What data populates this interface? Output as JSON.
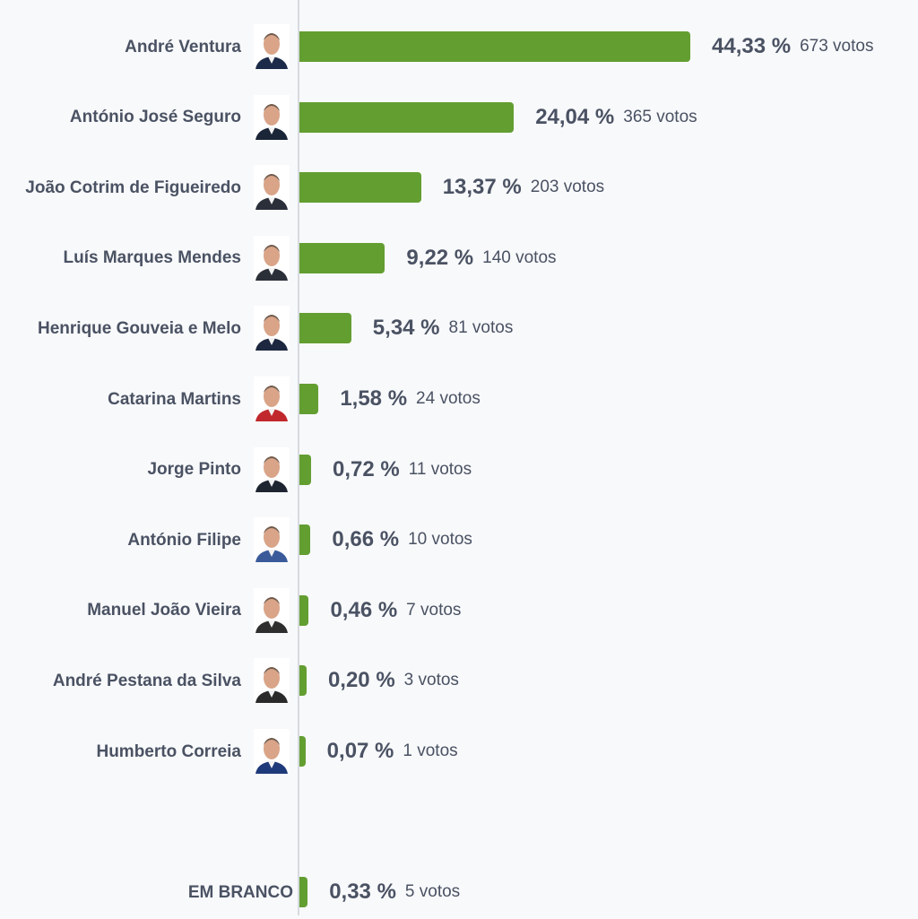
{
  "chart_data": {
    "type": "bar",
    "orientation": "horizontal",
    "bar_color": "#639e31",
    "categories": [
      "André Ventura",
      "António José Seguro",
      "João Cotrim de Figueiredo",
      "Luís Marques Mendes",
      "Henrique Gouveia e Melo",
      "Catarina Martins",
      "Jorge Pinto",
      "António Filipe",
      "Manuel João Vieira",
      "André Pestana da Silva",
      "Humberto Correia",
      "EM BRANCO"
    ],
    "values": [
      44.33,
      24.04,
      13.37,
      9.22,
      5.34,
      1.58,
      0.72,
      0.66,
      0.46,
      0.2,
      0.07,
      0.33
    ],
    "rows": [
      {
        "name": "André Ventura",
        "pct_label": "44,33 %",
        "votes_label": "673 votos",
        "photo": true
      },
      {
        "name": "António José Seguro",
        "pct_label": "24,04 %",
        "votes_label": "365 votos",
        "photo": true
      },
      {
        "name": "João Cotrim de Figueiredo",
        "pct_label": "13,37 %",
        "votes_label": "203 votos",
        "photo": true
      },
      {
        "name": "Luís Marques Mendes",
        "pct_label": "9,22 %",
        "votes_label": "140 votos",
        "photo": true
      },
      {
        "name": "Henrique Gouveia e Melo",
        "pct_label": "5,34 %",
        "votes_label": "81 votos",
        "photo": true
      },
      {
        "name": "Catarina Martins",
        "pct_label": "1,58 %",
        "votes_label": "24 votos",
        "photo": true
      },
      {
        "name": "Jorge Pinto",
        "pct_label": "0,72 %",
        "votes_label": "11 votos",
        "photo": true
      },
      {
        "name": "António Filipe",
        "pct_label": "0,66 %",
        "votes_label": "10 votos",
        "photo": true
      },
      {
        "name": "Manuel João Vieira",
        "pct_label": "0,46 %",
        "votes_label": "7 votos",
        "photo": true
      },
      {
        "name": "André Pestana da Silva",
        "pct_label": "0,20 %",
        "votes_label": "3 votos",
        "photo": true
      },
      {
        "name": "Humberto Correia",
        "pct_label": "0,07 %",
        "votes_label": "1 votos",
        "photo": true
      },
      {
        "name": "EM BRANCO",
        "pct_label": "0,33 %",
        "votes_label": "5 votos",
        "photo": false
      }
    ],
    "title": "",
    "xlabel": "",
    "ylabel": "",
    "xlim": [
      0,
      100
    ]
  }
}
